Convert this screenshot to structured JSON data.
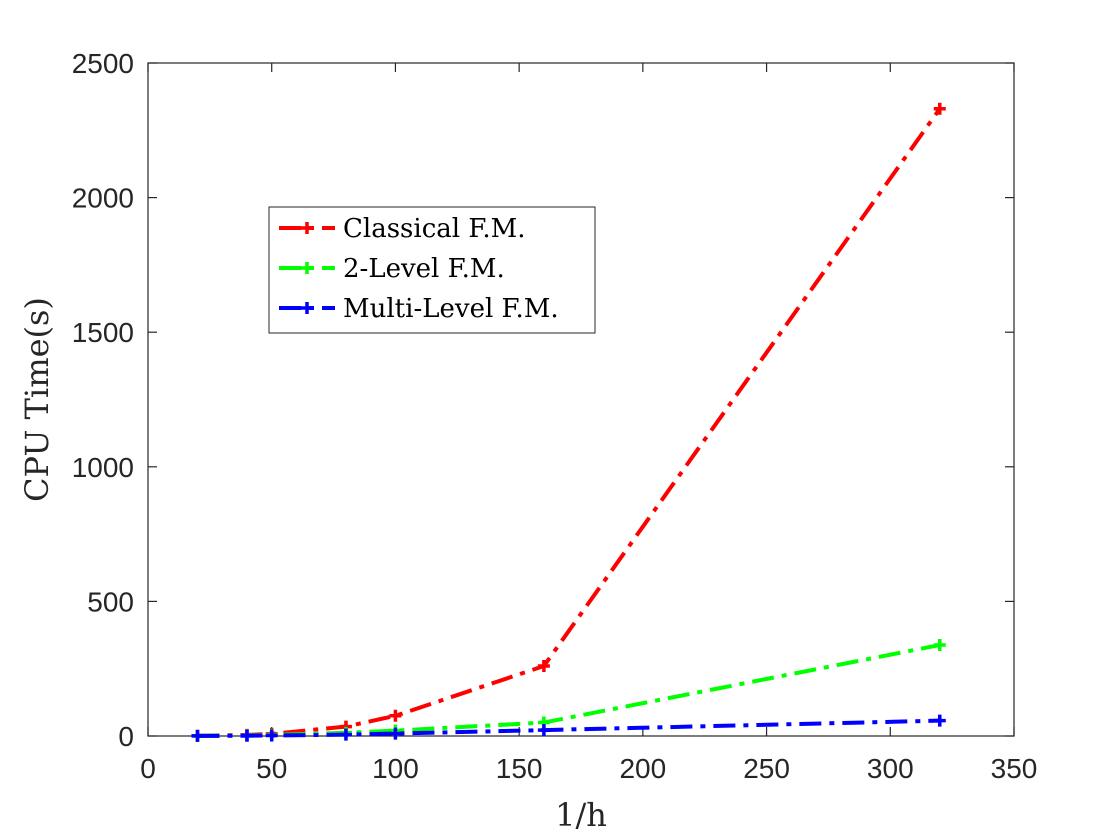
{
  "chart_data": {
    "type": "line",
    "xlabel": "1/h",
    "ylabel": "CPU Time(s)",
    "xlim": [
      0,
      350
    ],
    "ylim": [
      0,
      2500
    ],
    "xticks": [
      0,
      50,
      100,
      150,
      200,
      250,
      300,
      350
    ],
    "yticks": [
      0,
      500,
      1000,
      1500,
      2000,
      2500
    ],
    "grid": false,
    "legend_position": "upper-left",
    "series": [
      {
        "name": "Classical F.M.",
        "color": "#ff0000",
        "x": [
          20,
          40,
          50,
          80,
          100,
          160,
          320
        ],
        "y": [
          1,
          4,
          8,
          35,
          75,
          260,
          2330
        ]
      },
      {
        "name": "2-Level F.M.",
        "color": "#00ff00",
        "x": [
          20,
          40,
          50,
          80,
          100,
          160,
          320
        ],
        "y": [
          0.5,
          2,
          4,
          12,
          20,
          50,
          338
        ]
      },
      {
        "name": "Multi-Level F.M.",
        "color": "#0000ff",
        "x": [
          20,
          40,
          50,
          80,
          100,
          160,
          320
        ],
        "y": [
          0.3,
          1,
          2,
          5,
          9,
          22,
          57
        ]
      }
    ]
  }
}
